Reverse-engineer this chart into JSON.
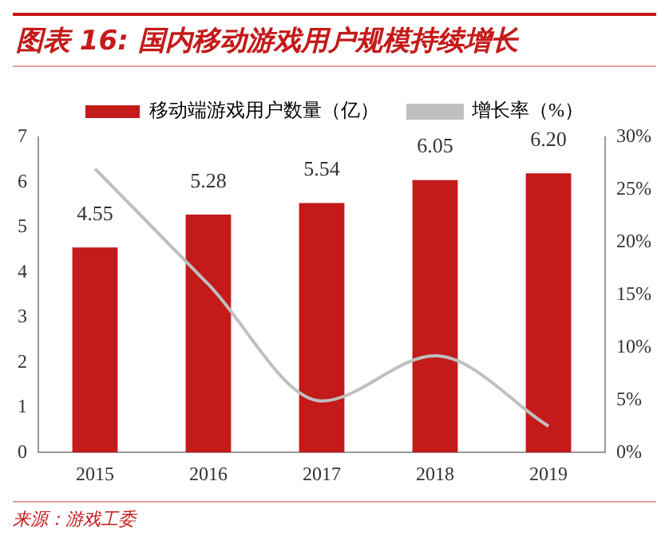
{
  "chart_data": {
    "type": "bar",
    "title": "图表 16:  国内移动游戏用户规模持续增长",
    "categories": [
      "2015",
      "2016",
      "2017",
      "2018",
      "2019"
    ],
    "series": [
      {
        "name": "移动端游戏用户数量（亿）",
        "color": "#c41a1a",
        "values": [
          4.55,
          5.28,
          5.54,
          6.05,
          6.2
        ]
      },
      {
        "name": "增长率（%）",
        "type": "line",
        "axis": "y2",
        "color": "#bfbfbf",
        "marker": "none",
        "values": [
          27,
          16,
          4.9,
          9.2,
          2.5
        ]
      }
    ],
    "value_labels": [
      "4.55",
      "5.28",
      "5.54",
      "6.05",
      "6.20"
    ],
    "ylim": [
      0,
      7
    ],
    "yticks": [
      0,
      1,
      2,
      3,
      4,
      5,
      6,
      7
    ],
    "y2lim": [
      0,
      30
    ],
    "y2ticks": [
      {
        "value": 0,
        "label": "0%"
      },
      {
        "value": 5,
        "label": "5%"
      },
      {
        "value": 10,
        "label": "10%"
      },
      {
        "value": 15,
        "label": "15%"
      },
      {
        "value": 20,
        "label": "20%"
      },
      {
        "value": 25,
        "label": "25%"
      },
      {
        "value": 30,
        "label": "30%"
      }
    ],
    "legend": "top",
    "grid": false,
    "annotations": [
      "来源：游戏工委"
    ]
  }
}
